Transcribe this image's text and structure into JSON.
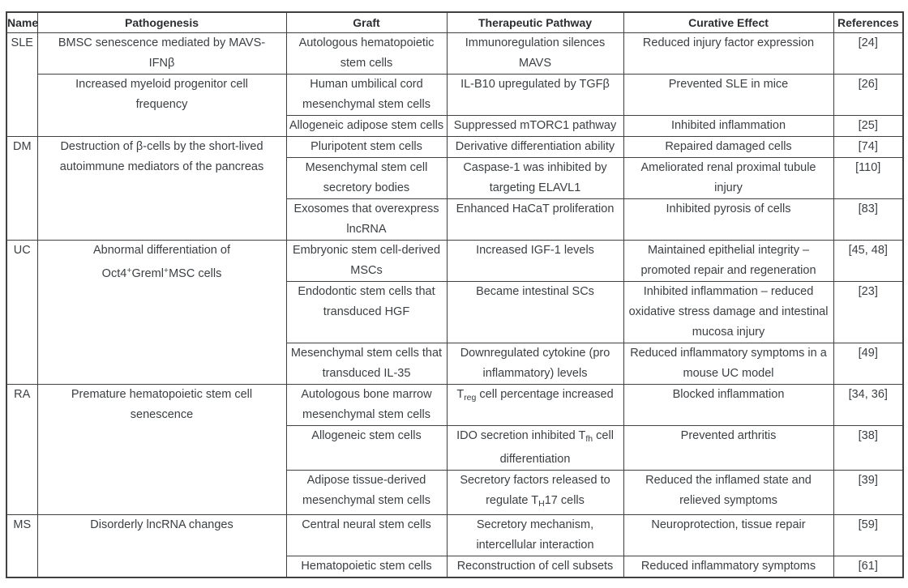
{
  "colors": {
    "background": "#ffffff",
    "border": "#3e4042",
    "heading": "#2b2d30",
    "text": "#3c4043"
  },
  "table": {
    "headers": [
      "Name",
      "Pathogenesis",
      "Graft",
      "Therapeutic Pathway",
      "Curative Effect",
      "References"
    ],
    "rows": [
      {
        "cells": [
          {
            "c": 0,
            "rs": 3,
            "t": "SLE"
          },
          {
            "c": 1,
            "t": [
              [
                "BMSC senescence mediated by MAVS-"
              ],
              [
                "",
                "br"
              ],
              [
                "IFNβ"
              ]
            ]
          },
          {
            "c": 2,
            "t": "Autologous hematopoietic stem cells"
          },
          {
            "c": 3,
            "t": [
              [
                "Immunoregulation silences"
              ],
              [
                "",
                "br"
              ],
              [
                "MAVS"
              ]
            ]
          },
          {
            "c": 4,
            "t": "Reduced injury factor expression"
          },
          {
            "c": 5,
            "t": "[24]"
          }
        ]
      },
      {
        "cells": [
          {
            "c": 1,
            "rs": 2,
            "t": [
              [
                "Increased myeloid progenitor cell"
              ],
              [
                "",
                "br"
              ],
              [
                "frequency"
              ]
            ]
          },
          {
            "c": 2,
            "t": "Human umbilical cord mesenchymal stem cells"
          },
          {
            "c": 3,
            "t": "IL-B10 upregulated by TGFβ"
          },
          {
            "c": 4,
            "t": "Prevented SLE in mice"
          },
          {
            "c": 5,
            "t": "[26]"
          }
        ]
      },
      {
        "cells": [
          {
            "c": 2,
            "t": "Allogeneic adipose stem cells"
          },
          {
            "c": 3,
            "t": "Suppressed mTORC1 pathway"
          },
          {
            "c": 4,
            "t": "Inhibited inflammation"
          },
          {
            "c": 5,
            "t": "[25]"
          }
        ]
      },
      {
        "cells": [
          {
            "c": 0,
            "rs": 3,
            "t": "DM"
          },
          {
            "c": 1,
            "rs": 3,
            "t": "Destruction of β-cells by the short-lived autoimmune mediators of the pancreas"
          },
          {
            "c": 2,
            "t": "Pluripotent stem cells"
          },
          {
            "c": 3,
            "t": "Derivative differentiation ability"
          },
          {
            "c": 4,
            "t": "Repaired damaged cells"
          },
          {
            "c": 5,
            "t": "[74]"
          }
        ]
      },
      {
        "cells": [
          {
            "c": 2,
            "t": "Mesenchymal stem cell secretory bodies"
          },
          {
            "c": 3,
            "t": "Caspase-1 was inhibited by targeting ELAVL1"
          },
          {
            "c": 4,
            "t": "Ameliorated renal proximal tubule injury"
          },
          {
            "c": 5,
            "t": "[110]"
          }
        ]
      },
      {
        "cells": [
          {
            "c": 2,
            "t": "Exosomes that overexpress lncRNA"
          },
          {
            "c": 3,
            "t": "Enhanced HaCaT proliferation"
          },
          {
            "c": 4,
            "t": "Inhibited pyrosis of cells"
          },
          {
            "c": 5,
            "t": "[83]"
          }
        ]
      },
      {
        "cells": [
          {
            "c": 0,
            "rs": 3,
            "t": "UC"
          },
          {
            "c": 1,
            "rs": 3,
            "t": [
              [
                "Abnormal differentiation of"
              ],
              [
                "",
                "br"
              ],
              [
                "Oct4"
              ],
              [
                "+",
                "sup"
              ],
              [
                "Greml"
              ],
              [
                "+",
                "sup"
              ],
              [
                "MSC cells"
              ]
            ]
          },
          {
            "c": 2,
            "t": "Embryonic stem cell-derived MSCs"
          },
          {
            "c": 3,
            "t": "Increased IGF-1 levels"
          },
          {
            "c": 4,
            "t": "Maintained epithelial integrity – promoted repair and regeneration"
          },
          {
            "c": 5,
            "t": "[45, 48]"
          }
        ]
      },
      {
        "cells": [
          {
            "c": 2,
            "t": "Endodontic stem cells that transduced HGF"
          },
          {
            "c": 3,
            "t": "Became intestinal SCs"
          },
          {
            "c": 4,
            "t": "Inhibited inflammation – reduced oxidative stress damage and intestinal mucosa injury"
          },
          {
            "c": 5,
            "t": "[23]"
          }
        ]
      },
      {
        "cells": [
          {
            "c": 2,
            "t": "Mesenchymal stem cells that transduced IL-35"
          },
          {
            "c": 3,
            "t": "Downregulated cytokine (pro inflammatory) levels"
          },
          {
            "c": 4,
            "t": "Reduced inflammatory symptoms in a mouse UC model"
          },
          {
            "c": 5,
            "t": "[49]"
          }
        ]
      },
      {
        "cells": [
          {
            "c": 0,
            "rs": 3,
            "t": "RA"
          },
          {
            "c": 1,
            "rs": 3,
            "t": [
              [
                "Premature hematopoietic stem cell"
              ],
              [
                "",
                "br"
              ],
              [
                "senescence"
              ]
            ]
          },
          {
            "c": 2,
            "t": "Autologous bone marrow mesenchymal stem cells"
          },
          {
            "c": 3,
            "t": [
              [
                "T"
              ],
              [
                "reg",
                "sub"
              ],
              [
                " cell percentage increased"
              ]
            ]
          },
          {
            "c": 4,
            "t": "Blocked inflammation"
          },
          {
            "c": 5,
            "t": "[34, 36]"
          }
        ]
      },
      {
        "cells": [
          {
            "c": 2,
            "t": "Allogeneic stem cells"
          },
          {
            "c": 3,
            "t": [
              [
                "IDO secretion inhibited T"
              ],
              [
                "fh",
                "sub"
              ],
              [
                " cell differentiation"
              ]
            ]
          },
          {
            "c": 4,
            "t": "Prevented arthritis"
          },
          {
            "c": 5,
            "t": "[38]"
          }
        ]
      },
      {
        "cells": [
          {
            "c": 2,
            "t": "Adipose tissue-derived mesenchymal stem cells"
          },
          {
            "c": 3,
            "t": [
              [
                "Secretory factors released to regulate T"
              ],
              [
                "H",
                "sub"
              ],
              [
                "17 cells"
              ]
            ]
          },
          {
            "c": 4,
            "t": "Reduced the inflamed state and relieved symptoms"
          },
          {
            "c": 5,
            "t": "[39]"
          }
        ]
      },
      {
        "cells": [
          {
            "c": 0,
            "rs": 2,
            "t": "MS"
          },
          {
            "c": 1,
            "rs": 2,
            "t": "Disorderly lncRNA changes"
          },
          {
            "c": 2,
            "t": "Central neural stem cells"
          },
          {
            "c": 3,
            "t": "Secretory mechanism, intercellular interaction"
          },
          {
            "c": 4,
            "t": "Neuroprotection, tissue repair"
          },
          {
            "c": 5,
            "t": "[59]"
          }
        ]
      },
      {
        "cells": [
          {
            "c": 2,
            "t": "Hematopoietic stem cells"
          },
          {
            "c": 3,
            "t": "Reconstruction of cell subsets"
          },
          {
            "c": 4,
            "t": "Reduced inflammatory symptoms"
          },
          {
            "c": 5,
            "t": "[61]"
          }
        ]
      }
    ]
  }
}
